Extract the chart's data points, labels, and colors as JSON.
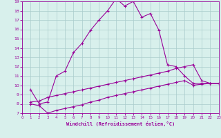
{
  "xlabel": "Windchill (Refroidissement éolien,°C)",
  "bg_color": "#d8f0ec",
  "line_color": "#990099",
  "grid_color": "#aacccc",
  "xmin": 0,
  "xmax": 23,
  "ymin": 7,
  "ymax": 19,
  "line1_x": [
    1,
    2,
    3,
    4,
    5,
    6,
    7,
    8,
    9,
    10,
    11,
    12,
    13,
    14,
    15,
    16,
    17,
    18,
    19,
    20,
    21,
    22,
    23
  ],
  "line1_y": [
    9.5,
    8.0,
    8.2,
    11.0,
    11.5,
    13.5,
    14.5,
    15.9,
    17.0,
    18.0,
    19.3,
    18.5,
    19.0,
    17.3,
    17.7,
    15.9,
    12.2,
    12.0,
    11.0,
    10.2,
    10.2,
    10.2,
    10.2
  ],
  "line2_x": [
    1,
    2,
    3,
    4,
    5,
    6,
    7,
    8,
    9,
    10,
    11,
    12,
    13,
    14,
    15,
    16,
    17,
    18,
    19,
    20,
    21,
    22,
    23
  ],
  "line2_y": [
    8.2,
    8.3,
    8.7,
    8.9,
    9.1,
    9.3,
    9.5,
    9.7,
    9.9,
    10.1,
    10.3,
    10.5,
    10.7,
    10.9,
    11.1,
    11.3,
    11.5,
    11.8,
    12.0,
    12.2,
    10.5,
    10.2,
    10.2
  ],
  "line3_x": [
    1,
    2,
    3,
    4,
    5,
    6,
    7,
    8,
    9,
    10,
    11,
    12,
    13,
    14,
    15,
    16,
    17,
    18,
    19,
    20,
    21,
    22,
    23
  ],
  "line3_y": [
    8.0,
    7.8,
    7.0,
    7.3,
    7.5,
    7.7,
    7.9,
    8.2,
    8.4,
    8.7,
    8.9,
    9.1,
    9.3,
    9.5,
    9.7,
    9.9,
    10.1,
    10.3,
    10.5,
    10.0,
    10.1,
    10.2,
    10.2
  ]
}
